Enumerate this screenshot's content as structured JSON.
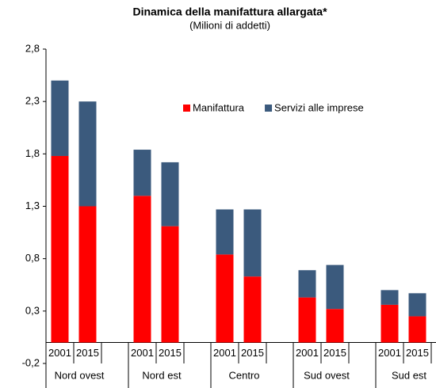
{
  "chart_data": {
    "type": "stacked_bar",
    "title": "Dinamica della manifattura allargata*",
    "subtitle": "(Milioni  di addetti)",
    "categories": [
      "2001",
      "2015",
      "2001",
      "2015",
      "2001",
      "2015",
      "2001",
      "2015",
      "2001",
      "2015"
    ],
    "groups": [
      "Nord ovest",
      "Nord est",
      "Centro",
      "Sud ovest",
      "Sud est"
    ],
    "series": [
      {
        "name": "Manifattura",
        "color": "#ff0000",
        "values": [
          1.78,
          1.3,
          1.4,
          1.11,
          0.84,
          0.63,
          0.43,
          0.32,
          0.36,
          0.25
        ]
      },
      {
        "name": "Servizi alle imprese",
        "color": "#3b5a7d",
        "values": [
          0.72,
          1.0,
          0.44,
          0.61,
          0.43,
          0.64,
          0.26,
          0.42,
          0.14,
          0.22
        ]
      }
    ],
    "ylim": [
      -0.2,
      2.8
    ],
    "yticks": [
      {
        "value": -0.2,
        "label": "-0,2"
      },
      {
        "value": 0.3,
        "label": "0,3"
      },
      {
        "value": 0.8,
        "label": "0,8"
      },
      {
        "value": 1.3,
        "label": "1,3"
      },
      {
        "value": 1.8,
        "label": "1,8"
      },
      {
        "value": 2.3,
        "label": "2,3"
      },
      {
        "value": 2.8,
        "label": "2,8"
      }
    ]
  }
}
